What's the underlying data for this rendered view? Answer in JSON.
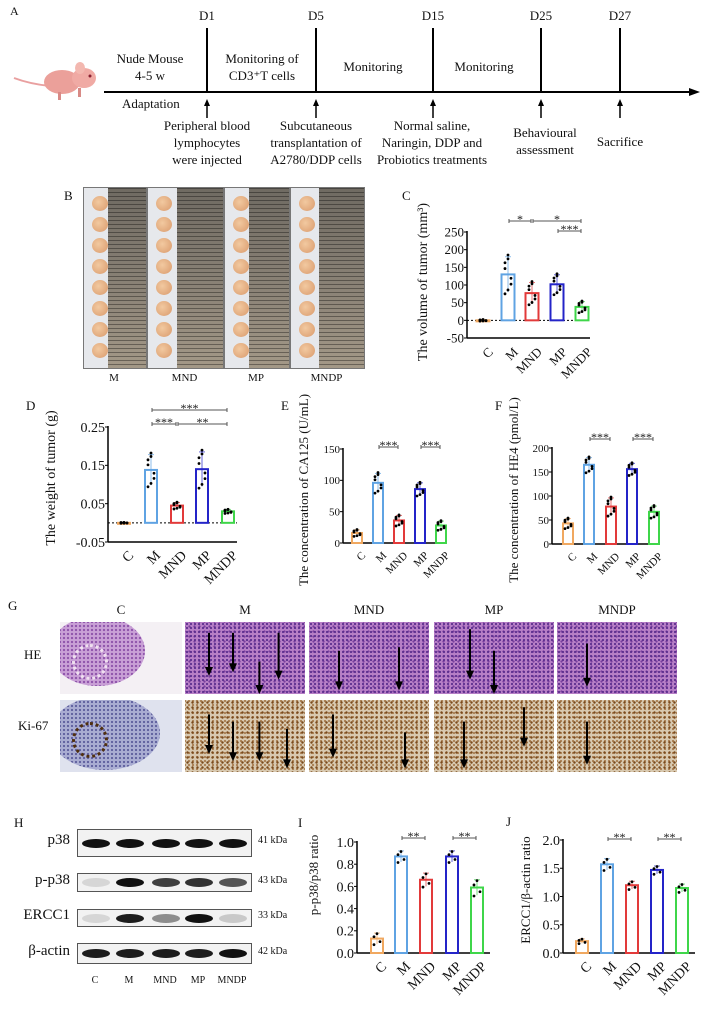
{
  "panels": {
    "A": "A",
    "B": "B",
    "C": "C",
    "D": "D",
    "E": "E",
    "F": "F",
    "G": "G",
    "H": "H",
    "I": "I",
    "J": "J"
  },
  "timeline": {
    "days": [
      "D1",
      "D5",
      "D15",
      "D25",
      "D27"
    ],
    "above": {
      "mouse_line1": "Nude Mouse",
      "mouse_line2": "4-5 w",
      "cd3_line1": "Monitoring of",
      "cd3_line2": "CD3⁺T cells",
      "monitoring1": "Monitoring",
      "monitoring2": "Monitoring"
    },
    "adaptation": "Adaptation",
    "events": [
      [
        "Peripheral blood",
        "lymphocytes",
        "were injected"
      ],
      [
        "Subcutaneous",
        "transplantation of",
        "A2780/DDP cells"
      ],
      [
        "Normal saline,",
        "Naringin, DDP and",
        "Probiotics treatments"
      ],
      [
        "Behavioural",
        "assessment"
      ],
      [
        "Sacrifice"
      ]
    ]
  },
  "photos": {
    "labels": [
      "M",
      "MND",
      "MP",
      "MNDP"
    ]
  },
  "histology": {
    "columns": [
      "C",
      "M",
      "MND",
      "MP",
      "MNDP"
    ],
    "rows": [
      "HE",
      "Ki-67"
    ]
  },
  "western_blot": {
    "proteins": [
      "p38",
      "p-p38",
      "ERCC1",
      "β-actin"
    ],
    "sizes": [
      "41 kDa",
      "43 kDa",
      "33 kDa",
      "42 kDa"
    ],
    "lanes": [
      "C",
      "M",
      "MND",
      "MP",
      "MNDP"
    ]
  },
  "colors": {
    "C": "#f0a860",
    "M": "#5fa3e3",
    "MND": "#e23a3a",
    "MP": "#2424c8",
    "MNDP": "#3fd64a"
  },
  "chart_data": [
    {
      "panel": "C",
      "type": "bar",
      "categories": [
        "C",
        "M",
        "MND",
        "MP",
        "MNDP"
      ],
      "values": [
        0,
        130,
        77,
        102,
        38
      ],
      "errors": [
        2,
        50,
        30,
        27,
        15
      ],
      "ylabel": "The volume of  tumor  (mm³)",
      "ylim": [
        -50,
        250
      ],
      "yticks": [
        -50,
        0,
        50,
        100,
        150,
        200,
        250
      ],
      "ytick_labels": [
        "-50",
        "0",
        "50",
        "100",
        "150",
        "200",
        "250"
      ],
      "zero_line": true,
      "significance": [
        {
          "from": "M",
          "to": "MND",
          "label": "*"
        },
        {
          "from": "MND",
          "to": "MNDP",
          "label": "*"
        },
        {
          "from": "MP",
          "to": "MNDP",
          "label": "***"
        }
      ]
    },
    {
      "panel": "D",
      "type": "bar",
      "categories": [
        "C",
        "M",
        "MND",
        "MP",
        "MNDP"
      ],
      "values": [
        0,
        0.138,
        0.045,
        0.14,
        0.03
      ],
      "errors": [
        0.001,
        0.04,
        0.008,
        0.045,
        0.005
      ],
      "ylabel": "The weight of  tumor  (g)",
      "ylim": [
        -0.05,
        0.25
      ],
      "yticks": [
        -0.05,
        0.05,
        0.15,
        0.25
      ],
      "ytick_labels": [
        "-0.05",
        "0.05",
        "0.15",
        "0.25"
      ],
      "zero_line": true,
      "significance": [
        {
          "from": "M",
          "to": "MNDP",
          "label": "***"
        },
        {
          "from": "M",
          "to": "MND",
          "label": "***"
        },
        {
          "from": "MND",
          "to": "MNDP",
          "label": "**"
        }
      ]
    },
    {
      "panel": "E",
      "type": "bar",
      "categories": [
        "C",
        "M",
        "MND",
        "MP",
        "MNDP"
      ],
      "values": [
        16,
        96,
        36,
        86,
        28
      ],
      "errors": [
        5,
        15,
        8,
        10,
        7
      ],
      "ylabel": "The concentration of CA125 (U/mL)",
      "ylim": [
        0,
        150
      ],
      "yticks": [
        0,
        50,
        100,
        150
      ],
      "ytick_labels": [
        "0",
        "50",
        "100",
        "150"
      ],
      "zero_line": false,
      "significance": [
        {
          "from": "M",
          "to": "MND",
          "label": "***"
        },
        {
          "from": "MP",
          "to": "MNDP",
          "label": "***"
        }
      ]
    },
    {
      "panel": "F",
      "type": "bar",
      "categories": [
        "C",
        "M",
        "MND",
        "MP",
        "MNDP"
      ],
      "values": [
        43,
        165,
        78,
        156,
        67
      ],
      "errors": [
        10,
        15,
        18,
        12,
        12
      ],
      "ylabel": "The concentration of HE4 (pmol/L)",
      "ylim": [
        0,
        200
      ],
      "yticks": [
        0,
        50,
        100,
        150,
        200
      ],
      "ytick_labels": [
        "0",
        "50",
        "100",
        "150",
        "200"
      ],
      "zero_line": false,
      "significance": [
        {
          "from": "M",
          "to": "MND",
          "label": "***"
        },
        {
          "from": "MP",
          "to": "MNDP",
          "label": "***"
        }
      ]
    },
    {
      "panel": "I",
      "type": "bar",
      "categories": [
        "C",
        "M",
        "MND",
        "MP",
        "MNDP"
      ],
      "values": [
        0.13,
        0.87,
        0.66,
        0.87,
        0.59
      ],
      "errors": [
        0.05,
        0.05,
        0.06,
        0.05,
        0.07
      ],
      "ylabel": "p-p38/p38 ratio",
      "ylim": [
        0,
        1
      ],
      "yticks": [
        0,
        0.2,
        0.4,
        0.6,
        0.8,
        1.0
      ],
      "ytick_labels": [
        "0.0",
        "0.2",
        "0.4",
        "0.6",
        "0.8",
        "1.0"
      ],
      "zero_line": false,
      "significance": [
        {
          "from": "M",
          "to": "MND",
          "label": "**"
        },
        {
          "from": "MP",
          "to": "MNDP",
          "label": "**"
        }
      ]
    },
    {
      "panel": "J",
      "type": "bar",
      "categories": [
        "C",
        "M",
        "MND",
        "MP",
        "MNDP"
      ],
      "values": [
        0.21,
        1.57,
        1.2,
        1.47,
        1.15
      ],
      "errors": [
        0.04,
        0.1,
        0.07,
        0.07,
        0.07
      ],
      "ylabel": "ERCC1/β-actin ratio",
      "ylim": [
        0,
        2
      ],
      "yticks": [
        0,
        0.5,
        1.0,
        1.5,
        2.0
      ],
      "ytick_labels": [
        "0.0",
        "0.5",
        "1.0",
        "1.5",
        "2.0"
      ],
      "zero_line": false,
      "significance": [
        {
          "from": "M",
          "to": "MND",
          "label": "**"
        },
        {
          "from": "MP",
          "to": "MNDP",
          "label": "**"
        }
      ]
    }
  ]
}
